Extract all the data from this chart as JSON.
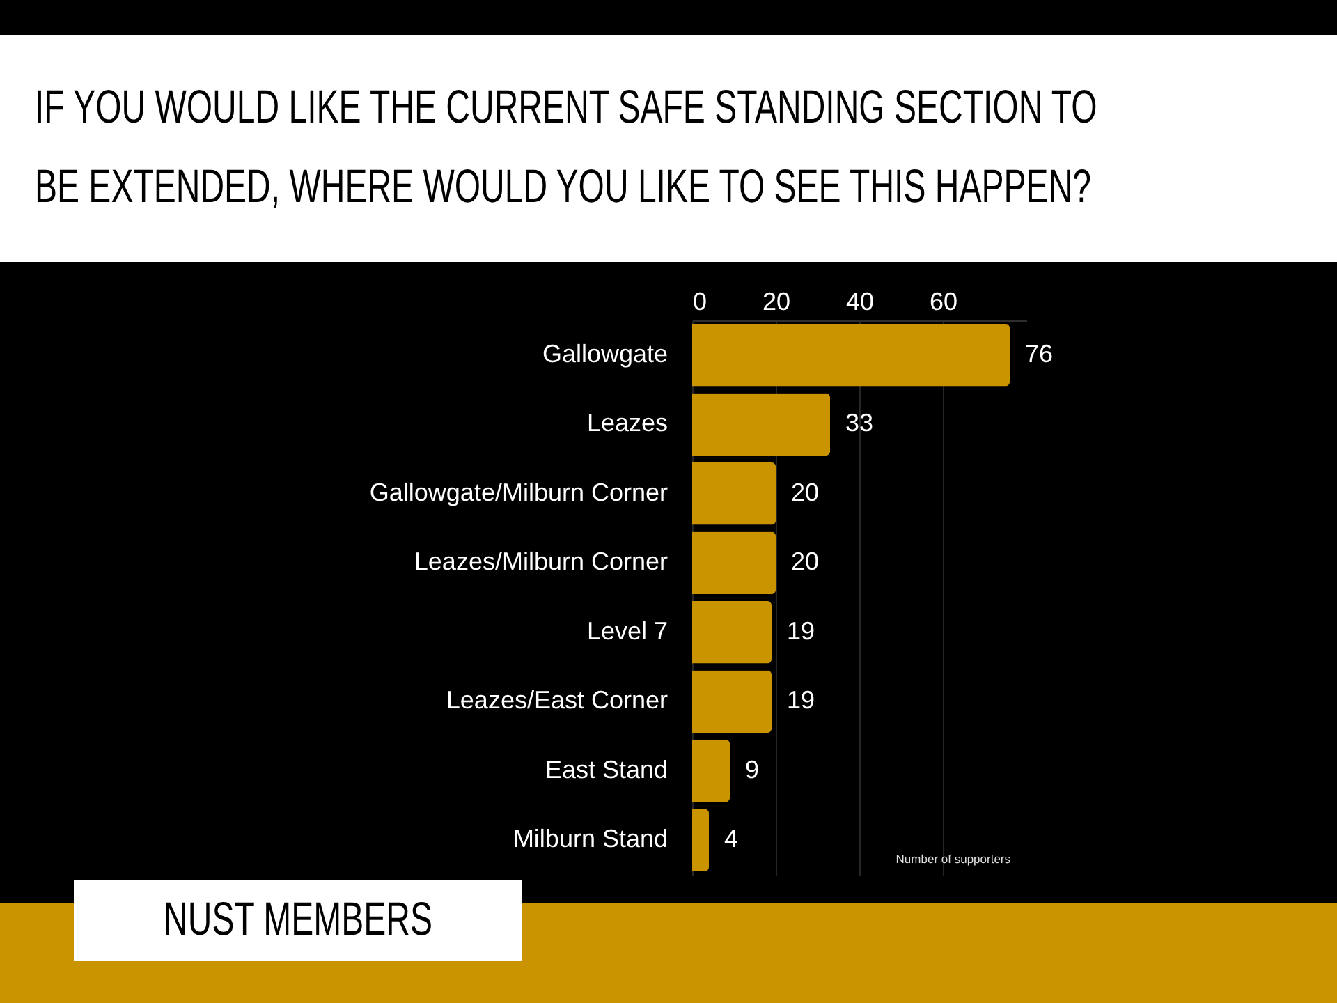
{
  "chart_data": {
    "type": "bar",
    "orientation": "horizontal",
    "title": "IF YOU WOULD LIKE THE CURRENT SAFE STANDING SECTION TO BE EXTENDED, WHERE WOULD YOU LIKE TO SEE THIS HAPPEN?",
    "xlabel": "Number of supporters",
    "categories": [
      "Gallowgate",
      "Leazes",
      "Gallowgate/Milburn Corner",
      "Leazes/Milburn Corner",
      "Level 7",
      "Leazes/East Corner",
      "East Stand",
      "Milburn Stand"
    ],
    "values": [
      76,
      33,
      20,
      20,
      19,
      19,
      9,
      4
    ],
    "color": "#c99400",
    "xlim": [
      0,
      80
    ],
    "xticks": [
      0,
      20,
      40,
      60
    ],
    "grid": "x",
    "data_labels": true,
    "annotations": [
      "NUST MEMBERS"
    ]
  }
}
